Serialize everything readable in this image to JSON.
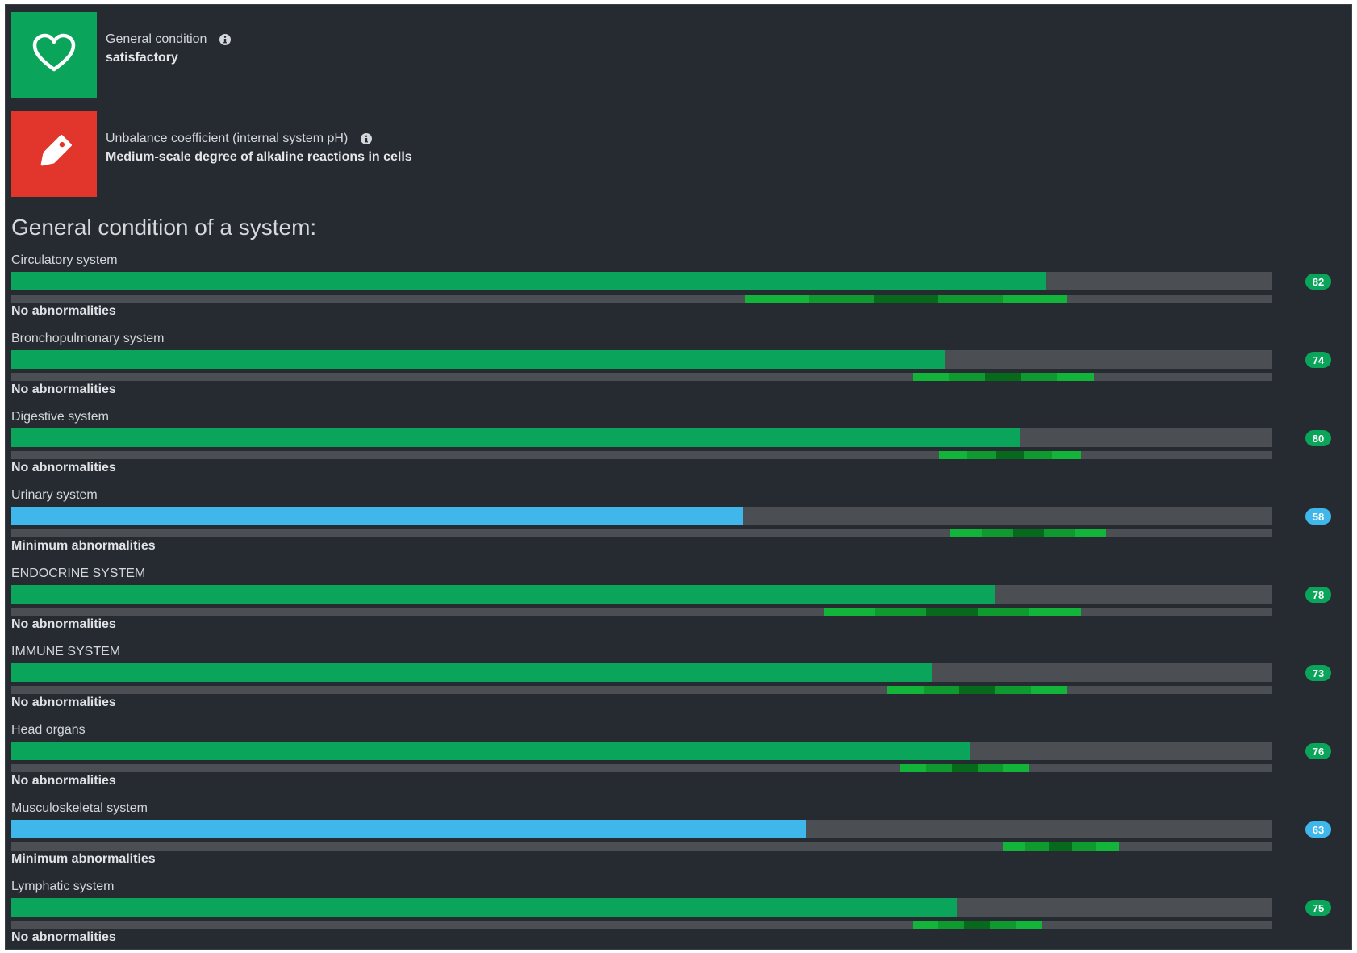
{
  "colors": {
    "ok": "#0aa55a",
    "min": "#3fb7ea",
    "alert": "#e2352b",
    "track": "#4b4f53",
    "seg_light": "#13b43a",
    "seg_mid": "#0e9a2f",
    "seg_dark": "#06691c"
  },
  "icons": {
    "general": "heart-outline-icon",
    "unbalance": "tag-icon",
    "info": "info-circle-icon"
  },
  "cards": {
    "general": {
      "label": "General condition",
      "value": "satisfactory"
    },
    "unbalance": {
      "label": "Unbalance coefficient (internal system pH)",
      "value": "Medium-scale degree of alkaline reactions in cells"
    }
  },
  "section_title": "General condition of a system:",
  "systems": [
    {
      "name": "Circulatory system",
      "score": "82",
      "level": 0.82,
      "level_type": "ok",
      "status": "No abnormalities",
      "range": [
        0.582,
        0.837
      ]
    },
    {
      "name": "Bronchopulmonary system",
      "score": "74",
      "level": 0.74,
      "level_type": "ok",
      "status": "No abnormalities",
      "range": [
        0.715,
        0.858
      ]
    },
    {
      "name": "Digestive system",
      "score": "80",
      "level": 0.8,
      "level_type": "ok",
      "status": "No abnormalities",
      "range": [
        0.736,
        0.848
      ]
    },
    {
      "name": "Urinary system",
      "score": "58",
      "level": 0.58,
      "level_type": "min",
      "status": "Minimum abnormalities",
      "range": [
        0.745,
        0.868
      ]
    },
    {
      "name": "ENDOCRINE SYSTEM",
      "score": "78",
      "level": 0.78,
      "level_type": "ok",
      "status": "No abnormalities",
      "range": [
        0.644,
        0.848
      ]
    },
    {
      "name": "IMMUNE SYSTEM",
      "score": "73",
      "level": 0.73,
      "level_type": "ok",
      "status": "No abnormalities",
      "range": [
        0.695,
        0.837
      ]
    },
    {
      "name": "Head organs",
      "score": "76",
      "level": 0.76,
      "level_type": "ok",
      "status": "No abnormalities",
      "range": [
        0.705,
        0.807
      ]
    },
    {
      "name": "Musculoskeletal system",
      "score": "63",
      "level": 0.63,
      "level_type": "min",
      "status": "Minimum abnormalities",
      "range": [
        0.786,
        0.878
      ]
    },
    {
      "name": "Lymphatic system",
      "score": "75",
      "level": 0.75,
      "level_type": "ok",
      "status": "No abnormalities",
      "range": [
        0.715,
        0.817
      ]
    }
  ]
}
